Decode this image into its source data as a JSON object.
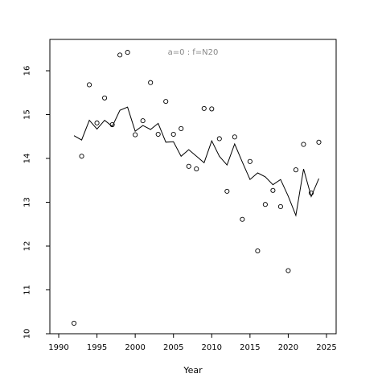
{
  "chart_data": {
    "type": "scatter",
    "title": "",
    "annotation": "a=0  :  f=N20",
    "xlabel": "Year",
    "ylabel": "",
    "xlim": [
      1990,
      2025
    ],
    "ylim": [
      10,
      16.6
    ],
    "xticks": [
      1990,
      1995,
      2000,
      2005,
      2010,
      2015,
      2020,
      2025
    ],
    "yticks": [
      10,
      11,
      12,
      13,
      14,
      15,
      16
    ],
    "grid": false,
    "series": [
      {
        "type": "scatter",
        "x": [
          1992,
          1993,
          1994,
          1995,
          1996,
          1997,
          1998,
          1999,
          2000,
          2001,
          2002,
          2003,
          2004,
          2005,
          2006,
          2007,
          2008,
          2009,
          2010,
          2011,
          2012,
          2013,
          2014,
          2015,
          2016,
          2017,
          2018,
          2019,
          2020,
          2021,
          2022,
          2023,
          2024
        ],
        "values": [
          10.24,
          14.05,
          15.68,
          14.81,
          15.38,
          14.77,
          16.36,
          16.42,
          14.54,
          14.86,
          15.73,
          14.55,
          15.3,
          14.55,
          14.68,
          13.82,
          13.76,
          15.14,
          15.13,
          14.45,
          13.25,
          14.49,
          12.61,
          13.93,
          11.89,
          12.95,
          13.27,
          12.9,
          11.44,
          13.74,
          14.32,
          13.21,
          14.37
        ]
      },
      {
        "type": "line",
        "x": [
          1992,
          1993,
          1994,
          1995,
          1996,
          1997,
          1998,
          1999,
          2000,
          2001,
          2002,
          2003,
          2004,
          2005,
          2006,
          2007,
          2008,
          2009,
          2010,
          2011,
          2012,
          2013,
          2014,
          2015,
          2016,
          2017,
          2018,
          2019,
          2020,
          2021,
          2022,
          2023,
          2024
        ],
        "values": [
          14.52,
          14.42,
          14.87,
          14.67,
          14.87,
          14.73,
          15.1,
          15.17,
          14.62,
          14.75,
          14.66,
          14.8,
          14.37,
          14.38,
          14.05,
          14.2,
          14.05,
          13.9,
          14.4,
          14.05,
          13.85,
          14.33,
          13.92,
          13.52,
          13.67,
          13.58,
          13.4,
          13.52,
          13.14,
          12.7,
          13.76,
          13.13,
          13.54
        ]
      }
    ]
  }
}
